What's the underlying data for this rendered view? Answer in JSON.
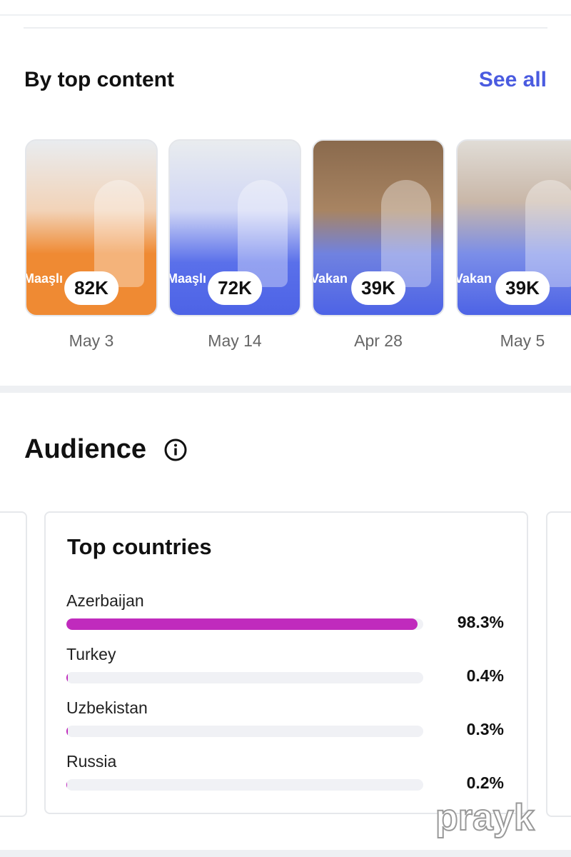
{
  "top_content": {
    "title": "By top content",
    "see_all": "See all",
    "posts": [
      {
        "caption": "Maaşlı",
        "views": "82K",
        "date": "May 3"
      },
      {
        "caption": "Maaşlı",
        "views": "72K",
        "date": "May 14"
      },
      {
        "caption": "Vakan",
        "views": "39K",
        "date": "Apr 28"
      },
      {
        "caption": "Vakan",
        "views": "39K",
        "date": "May 5"
      }
    ]
  },
  "audience": {
    "title": "Audience",
    "card_title": "Top countries",
    "countries": [
      {
        "name": "Azerbaijan",
        "value": 98.3,
        "value_label": "98.3%"
      },
      {
        "name": "Turkey",
        "value": 0.4,
        "value_label": "0.4%"
      },
      {
        "name": "Uzbekistan",
        "value": 0.3,
        "value_label": "0.3%"
      },
      {
        "name": "Russia",
        "value": 0.2,
        "value_label": "0.2%"
      }
    ]
  },
  "watermark": "prayk"
}
